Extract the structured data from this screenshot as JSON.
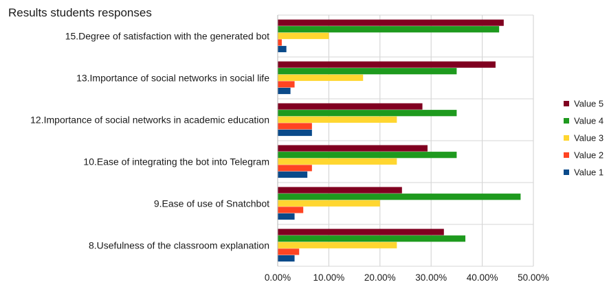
{
  "chart_data": {
    "type": "bar",
    "orientation": "horizontal",
    "title": "Results students responses",
    "categories": [
      "15.Degree of satisfaction with the generated bot",
      "13.Importance of social networks in social life",
      "12.Importance of social networks in academic education",
      "10.Ease of integrating the bot into Telegram",
      "9.Ease of use of Snatchbot",
      "8.Usefulness of the classroom explanation"
    ],
    "series": [
      {
        "name": "Value 5",
        "color": "#800020",
        "values": [
          44.2,
          42.6,
          28.3,
          29.3,
          24.3,
          32.5
        ]
      },
      {
        "name": "Value 4",
        "color": "#1e9a1e",
        "values": [
          43.3,
          35.0,
          35.0,
          35.0,
          47.5,
          36.7
        ]
      },
      {
        "name": "Value 3",
        "color": "#ffd630",
        "values": [
          10.0,
          16.7,
          23.3,
          23.3,
          20.0,
          23.3
        ]
      },
      {
        "name": "Value 2",
        "color": "#ff4422",
        "values": [
          0.8,
          3.3,
          6.7,
          6.7,
          5.0,
          4.2
        ]
      },
      {
        "name": "Value 1",
        "color": "#0a4a8a",
        "values": [
          1.7,
          2.5,
          6.7,
          5.8,
          3.3,
          3.3
        ]
      }
    ],
    "xlim": [
      0,
      50
    ],
    "xticks": [
      0,
      10,
      20,
      30,
      40,
      50
    ],
    "xtick_labels": [
      "0.00%",
      "10.00%",
      "20.00%",
      "30.00%",
      "40.00%",
      "50.00%"
    ],
    "grid": true,
    "legend": {
      "position": "right",
      "order": [
        "Value 5",
        "Value 4",
        "Value 3",
        "Value 2",
        "Value 1"
      ]
    }
  }
}
